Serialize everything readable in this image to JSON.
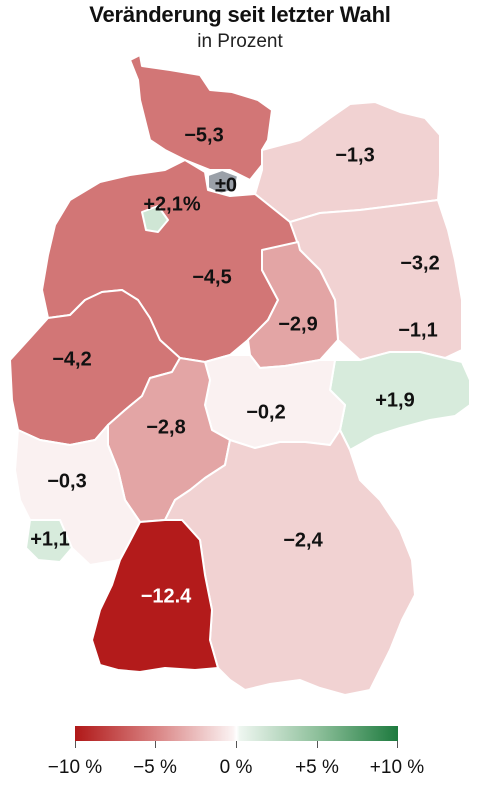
{
  "title": "Veränderung seit letzter Wahl",
  "subtitle": "in Prozent",
  "colors": {
    "strong_neg": "#b31b1b",
    "neg": "#d27676",
    "mid_neg": "#e3a5a5",
    "light_neg": "#f1d2d2",
    "near_zero": "#faf1f1",
    "light_pos": "#d7ebdc",
    "pos": "#cfe6d5",
    "city_state_zero": "#9aa0a8"
  },
  "regions": [
    {
      "name": "Schleswig-Holstein",
      "label": "−5,3"
    },
    {
      "name": "Hamburg",
      "label": "±0"
    },
    {
      "name": "Mecklenburg-Vorpommern",
      "label": "−1,3"
    },
    {
      "name": "Bremen",
      "label": "+2,1%"
    },
    {
      "name": "Niedersachsen",
      "label": "−4,5"
    },
    {
      "name": "Berlin",
      "label": "−3,2"
    },
    {
      "name": "Brandenburg",
      "label": "−1,1"
    },
    {
      "name": "Sachsen-Anhalt",
      "label": "−2,9"
    },
    {
      "name": "Nordrhein-Westfalen",
      "label": "−4,2"
    },
    {
      "name": "Sachsen",
      "label": "+1,9"
    },
    {
      "name": "Thüringen",
      "label": "−0,2"
    },
    {
      "name": "Hessen",
      "label": "−2,8"
    },
    {
      "name": "Rheinland-Pfalz",
      "label": "−0,3"
    },
    {
      "name": "Saarland",
      "label": "+1,1"
    },
    {
      "name": "Bayern",
      "label": "−2,4"
    },
    {
      "name": "Baden-Württemberg",
      "label": "−12.4"
    }
  ],
  "legend": {
    "ticks": [
      "−10 %",
      "−5 %",
      "0 %",
      "+5 %",
      "+10 %"
    ]
  }
}
